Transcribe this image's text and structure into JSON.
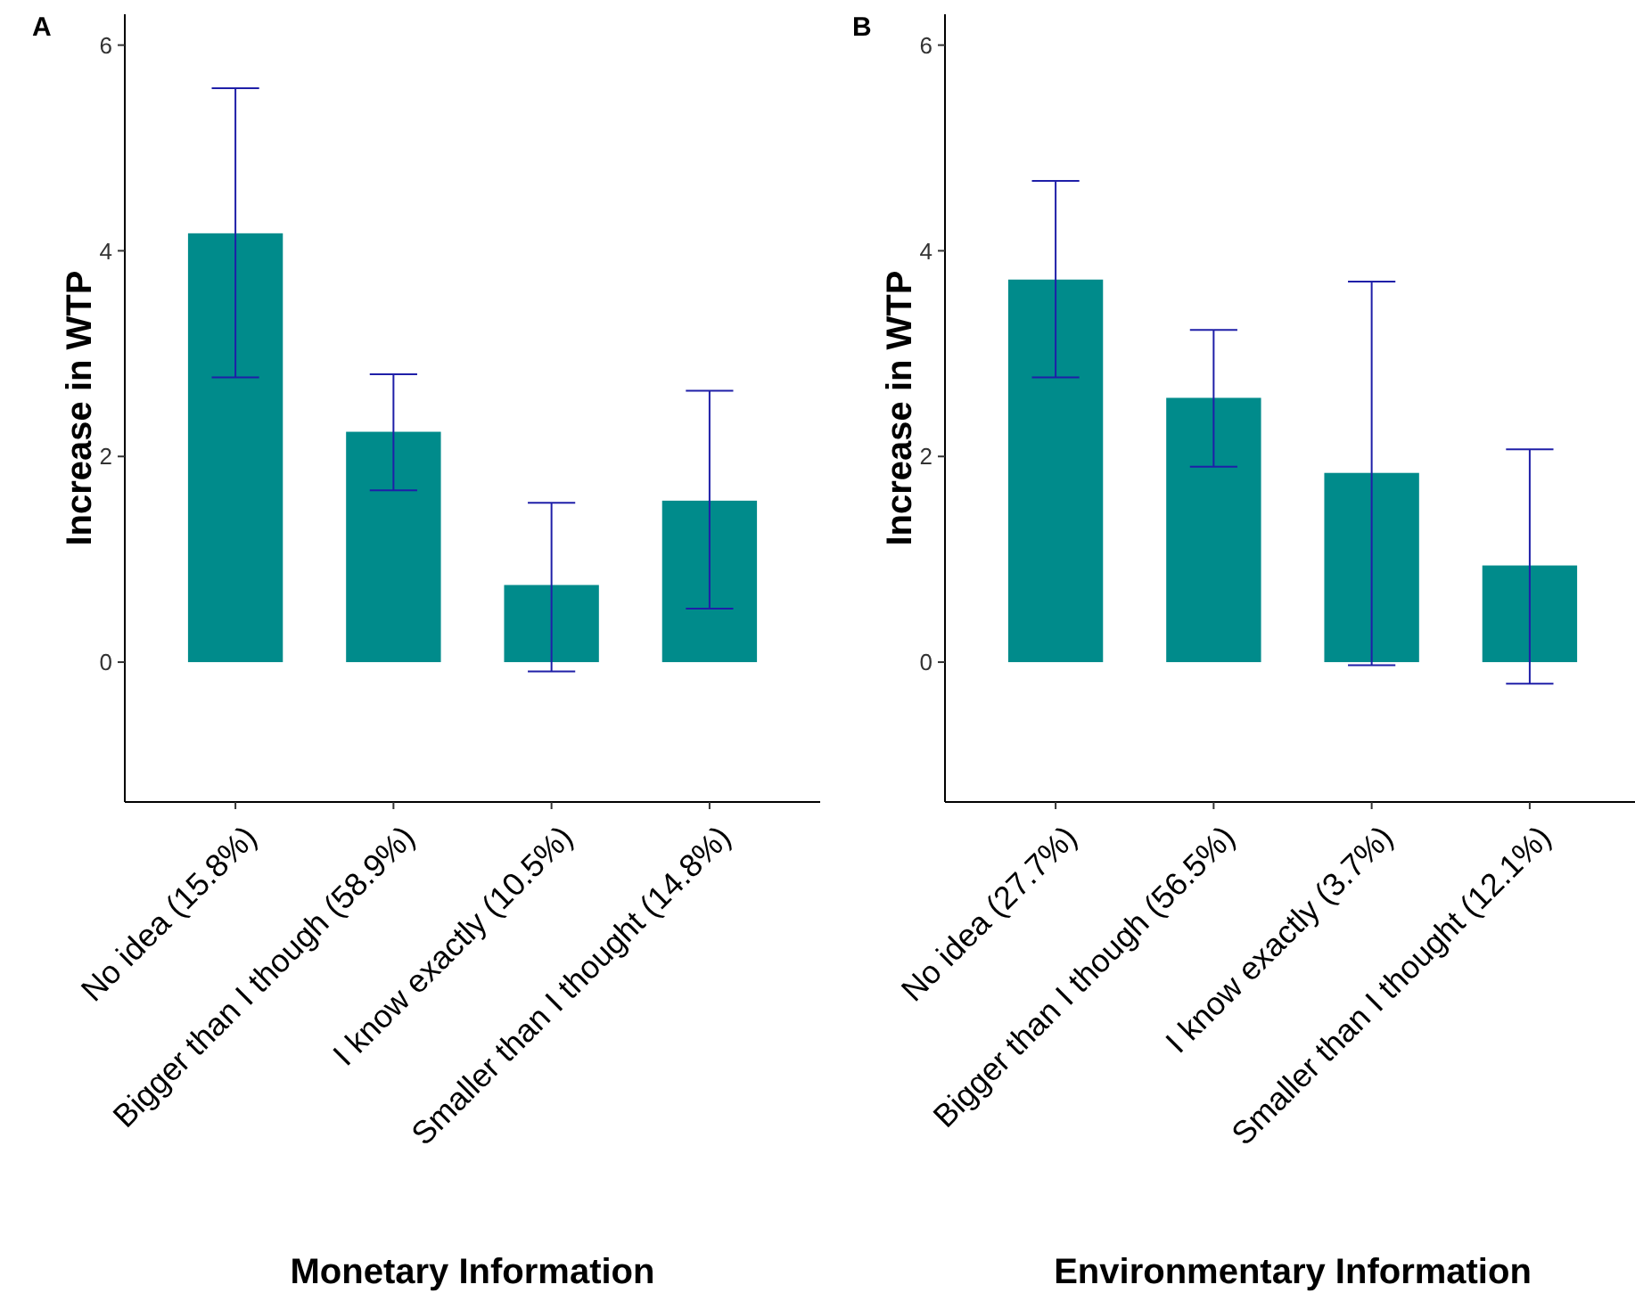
{
  "chart_data": [
    {
      "type": "bar",
      "title": "A",
      "xlabel": "Monetary Information",
      "ylabel": "Increase in WTP",
      "categories": [
        "No idea (15.8%)",
        "Bigger than I though (58.9%)",
        "I know exactly (10.5%)",
        "Smaller than I thought (14.8%)"
      ],
      "values": [
        4.17,
        2.24,
        0.75,
        1.57
      ],
      "errors": [
        [
          2.77,
          5.58
        ],
        [
          1.67,
          2.8
        ],
        [
          -0.09,
          1.55
        ],
        [
          0.52,
          2.64
        ]
      ],
      "color": "#008b8b",
      "ylim": [
        -1.36,
        6.3
      ],
      "yticks": [
        0,
        2,
        4,
        6
      ],
      "grid": false
    },
    {
      "type": "bar",
      "title": "B",
      "xlabel": "Environmentary Information",
      "ylabel": "Increase in WTP",
      "categories": [
        "No idea (27.7%)",
        "Bigger than I though (56.5%)",
        "I know exactly (3.7%)",
        "Smaller than I thought (12.1%)"
      ],
      "values": [
        3.72,
        2.57,
        1.84,
        0.94
      ],
      "errors": [
        [
          2.77,
          4.68
        ],
        [
          1.9,
          3.23
        ],
        [
          -0.03,
          3.7
        ],
        [
          -0.21,
          2.07
        ]
      ],
      "color": "#008b8b",
      "ylim": [
        -1.36,
        6.3
      ],
      "yticks": [
        0,
        2,
        4,
        6
      ],
      "grid": false
    }
  ]
}
